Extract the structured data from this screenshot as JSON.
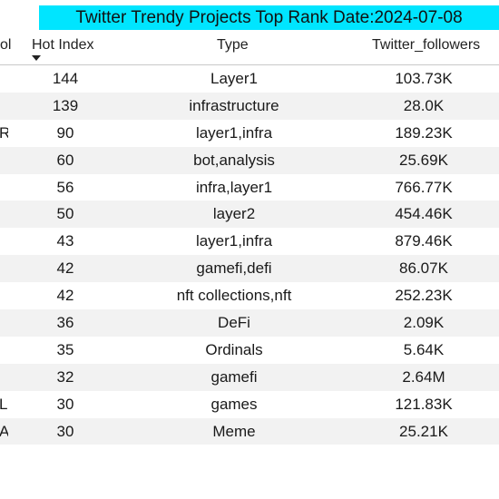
{
  "title": "Twitter Trendy Projects Top Rank Date:2024-07-08",
  "columns": {
    "symbol": "ol",
    "hot_index": "Hot Index",
    "type": "Type",
    "followers": "Twitter_followers"
  },
  "sort": {
    "column": "hot_index",
    "direction": "descending",
    "icon": "sort-down-arrow"
  },
  "rows": [
    {
      "sym": "",
      "hot": "144",
      "type": "Layer1",
      "fol": "103.73K"
    },
    {
      "sym": "",
      "hot": "139",
      "type": "infrastructure",
      "fol": "28.0K"
    },
    {
      "sym": "R",
      "hot": "90",
      "type": "layer1,infra",
      "fol": "189.23K"
    },
    {
      "sym": "",
      "hot": "60",
      "type": "bot,analysis",
      "fol": "25.69K"
    },
    {
      "sym": "",
      "hot": "56",
      "type": "infra,layer1",
      "fol": "766.77K"
    },
    {
      "sym": "",
      "hot": "50",
      "type": "layer2",
      "fol": "454.46K"
    },
    {
      "sym": "",
      "hot": "43",
      "type": "layer1,infra",
      "fol": "879.46K"
    },
    {
      "sym": "",
      "hot": "42",
      "type": "gamefi,defi",
      "fol": "86.07K"
    },
    {
      "sym": "",
      "hot": "42",
      "type": "nft collections,nft",
      "fol": "252.23K"
    },
    {
      "sym": "",
      "hot": "36",
      "type": "DeFi",
      "fol": "2.09K"
    },
    {
      "sym": "",
      "hot": "35",
      "type": "Ordinals",
      "fol": "5.64K"
    },
    {
      "sym": "",
      "hot": "32",
      "type": "gamefi",
      "fol": "2.64M"
    },
    {
      "sym": "L",
      "hot": "30",
      "type": "games",
      "fol": "121.83K"
    },
    {
      "sym": "A",
      "hot": "30",
      "type": "Meme",
      "fol": "25.21K"
    }
  ],
  "colors": {
    "title_bg": "#00e5ff",
    "row_alt_bg": "#f2f2f2"
  }
}
